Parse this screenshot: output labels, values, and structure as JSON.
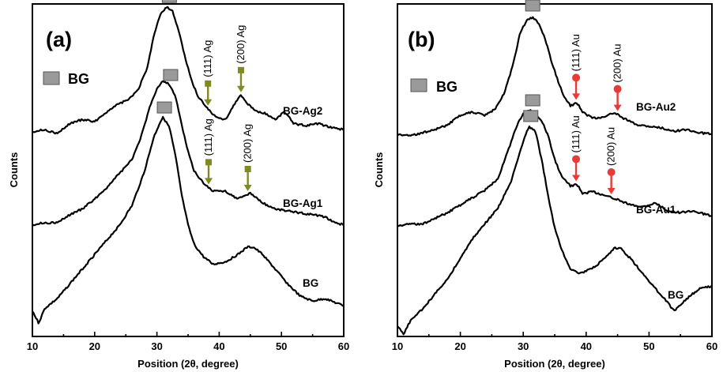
{
  "chart_data": [
    {
      "type": "line",
      "panel_label": "(a)",
      "xlabel": "Position (2θ, degree)",
      "ylabel": "Counts",
      "xlim": [
        10,
        60
      ],
      "x_ticks": [
        "10",
        "20",
        "30",
        "40",
        "50",
        "60"
      ],
      "legend": {
        "label": "BG",
        "marker": "grey-square",
        "placement": "top-left"
      },
      "marker_color": "#9a9a9a",
      "arrow_color": "#7f8a22",
      "series": [
        {
          "name": "BG-Ag2",
          "x": [
            10,
            12,
            14,
            16,
            18,
            20,
            22,
            24,
            25.5,
            27,
            28.5,
            29.5,
            30.5,
            31.5,
            32.5,
            33.5,
            34.5,
            35.5,
            36.5,
            38,
            39.5,
            41,
            42.5,
            43.5,
            44.5,
            46,
            47.5,
            49,
            50.5,
            52,
            54,
            56,
            58,
            60
          ],
          "y": [
            0.06,
            0.07,
            0.05,
            0.1,
            0.12,
            0.11,
            0.16,
            0.2,
            0.22,
            0.27,
            0.38,
            0.54,
            0.64,
            0.68,
            0.66,
            0.56,
            0.43,
            0.32,
            0.24,
            0.18,
            0.13,
            0.12,
            0.2,
            0.24,
            0.2,
            0.16,
            0.15,
            0.12,
            0.16,
            0.1,
            0.09,
            0.1,
            0.08,
            0.07
          ]
        },
        {
          "name": "BG-Ag1",
          "x": [
            10,
            12,
            14,
            16,
            18,
            20,
            22,
            24,
            26,
            27.5,
            29,
            30,
            31,
            32,
            33,
            34,
            35,
            36,
            37.5,
            39,
            41,
            43,
            45,
            47,
            49,
            51,
            53,
            55,
            57,
            58.5,
            60
          ],
          "y": [
            0.05,
            0.06,
            0.06,
            0.1,
            0.13,
            0.18,
            0.24,
            0.31,
            0.38,
            0.5,
            0.66,
            0.74,
            0.78,
            0.76,
            0.7,
            0.55,
            0.42,
            0.32,
            0.26,
            0.22,
            0.22,
            0.18,
            0.21,
            0.16,
            0.13,
            0.12,
            0.11,
            0.1,
            0.09,
            0.06,
            0.05
          ]
        },
        {
          "name": "BG",
          "x": [
            10,
            11,
            12,
            14,
            16,
            18,
            20,
            22,
            24,
            26,
            28,
            29.5,
            30.5,
            31,
            32,
            33,
            34,
            35,
            36,
            37.5,
            39,
            41,
            43,
            44.5,
            45.5,
            47,
            49,
            51,
            53,
            55,
            57,
            59,
            60
          ],
          "y": [
            0.05,
            0.0,
            0.06,
            0.1,
            0.16,
            0.22,
            0.28,
            0.34,
            0.4,
            0.48,
            0.62,
            0.76,
            0.82,
            0.84,
            0.8,
            0.68,
            0.52,
            0.4,
            0.32,
            0.27,
            0.24,
            0.25,
            0.28,
            0.31,
            0.31,
            0.28,
            0.22,
            0.16,
            0.11,
            0.09,
            0.1,
            0.08,
            0.07
          ]
        }
      ],
      "annotations": [
        {
          "text": "(111) Ag",
          "series": "BG-Ag2",
          "x": 38.2
        },
        {
          "text": "(200) Ag",
          "series": "BG-Ag2",
          "x": 43.5
        },
        {
          "text": "(111) Ag",
          "series": "BG-Ag1",
          "x": 38.3
        },
        {
          "text": "(200) Ag",
          "series": "BG-Ag1",
          "x": 44.6
        }
      ],
      "bg_markers": [
        {
          "series": "BG-Ag2",
          "x": 32
        },
        {
          "series": "BG-Ag1",
          "x": 32.2
        },
        {
          "series": "BG",
          "x": 31.2
        }
      ],
      "series_labels": [
        "BG-Ag2",
        "BG-Ag1",
        "BG"
      ]
    },
    {
      "type": "line",
      "panel_label": "(b)",
      "xlabel": "Position (2θ, degree)",
      "ylabel": "Counts",
      "xlim": [
        10,
        60
      ],
      "x_ticks": [
        "10",
        "20",
        "30",
        "40",
        "50",
        "60"
      ],
      "legend": {
        "label": "BG",
        "marker": "grey-square",
        "placement": "top-left"
      },
      "marker_color": "#9a9a9a",
      "arrow_color": "#e83a36",
      "series": [
        {
          "name": "BG-Au2",
          "x": [
            10,
            12,
            14,
            16,
            18,
            20,
            22,
            24,
            25.5,
            27,
            28.5,
            29.5,
            30.5,
            31.5,
            32.5,
            33.5,
            34.5,
            35.5,
            36.5,
            37.5,
            38.5,
            39.5,
            41,
            43,
            44.5,
            46,
            48,
            50,
            52,
            54,
            56,
            58,
            60
          ],
          "y": [
            0.1,
            0.09,
            0.11,
            0.13,
            0.16,
            0.22,
            0.24,
            0.22,
            0.26,
            0.36,
            0.56,
            0.74,
            0.82,
            0.84,
            0.8,
            0.7,
            0.56,
            0.44,
            0.34,
            0.28,
            0.3,
            0.24,
            0.2,
            0.21,
            0.24,
            0.2,
            0.16,
            0.15,
            0.14,
            0.12,
            0.13,
            0.11,
            0.1
          ]
        },
        {
          "name": "BG-Au1",
          "x": [
            10,
            12,
            14,
            16,
            18,
            20,
            22,
            24,
            26,
            27.5,
            29,
            30,
            31,
            32,
            33,
            34,
            35,
            36,
            37.5,
            38.5,
            39.5,
            41,
            43,
            45,
            47,
            49,
            51,
            53,
            55,
            57,
            60
          ],
          "y": [
            0.05,
            0.06,
            0.06,
            0.09,
            0.12,
            0.16,
            0.2,
            0.24,
            0.3,
            0.44,
            0.58,
            0.64,
            0.66,
            0.64,
            0.6,
            0.52,
            0.4,
            0.32,
            0.26,
            0.27,
            0.22,
            0.23,
            0.21,
            0.19,
            0.16,
            0.15,
            0.17,
            0.13,
            0.12,
            0.13,
            0.1
          ]
        },
        {
          "name": "BG",
          "x": [
            10,
            11,
            12,
            14,
            16,
            18,
            20,
            22,
            24,
            26,
            28,
            29.5,
            30.5,
            31,
            32,
            33,
            34,
            35,
            36,
            37.5,
            39,
            41,
            43,
            44.5,
            45.5,
            47,
            49,
            51,
            52.5,
            54,
            56,
            58,
            60
          ],
          "y": [
            0.03,
            0.0,
            0.05,
            0.1,
            0.16,
            0.22,
            0.3,
            0.38,
            0.44,
            0.5,
            0.6,
            0.72,
            0.8,
            0.82,
            0.8,
            0.68,
            0.54,
            0.42,
            0.34,
            0.26,
            0.24,
            0.26,
            0.3,
            0.34,
            0.34,
            0.3,
            0.24,
            0.18,
            0.14,
            0.09,
            0.14,
            0.18,
            0.19
          ]
        }
      ],
      "annotations": [
        {
          "text": "(111) Au",
          "series": "BG-Au2",
          "x": 38.4
        },
        {
          "text": "(200) Au",
          "series": "BG-Au2",
          "x": 45
        },
        {
          "text": "(111) Au",
          "series": "BG-Au1",
          "x": 38.4
        },
        {
          "text": "(200) Au",
          "series": "BG-Au1",
          "x": 44
        }
      ],
      "bg_markers": [
        {
          "series": "BG-Au2",
          "x": 31.5
        },
        {
          "series": "BG-Au1",
          "x": 31.5
        },
        {
          "series": "BG",
          "x": 31.2
        }
      ],
      "series_labels": [
        "BG-Au2",
        "BG-Au1",
        "BG"
      ]
    }
  ]
}
